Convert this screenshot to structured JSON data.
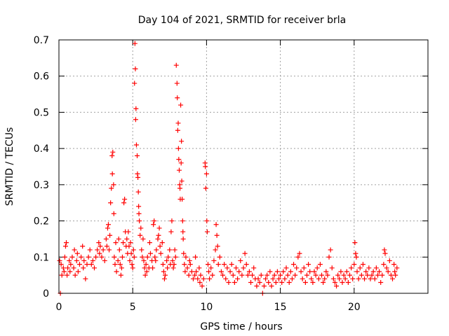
{
  "chart_data": {
    "type": "scatter",
    "title": "Day 104 of 2021, SRMTID for receiver brla",
    "xlabel": "GPS time / hours",
    "ylabel": "SRMTID / TECUs",
    "xlim": [
      0,
      25
    ],
    "ylim": [
      0,
      0.7
    ],
    "x_ticks": [
      0,
      5,
      10,
      15,
      20
    ],
    "y_ticks": [
      0,
      0.1,
      0.2,
      0.3,
      0.4,
      0.5,
      0.6,
      0.7
    ],
    "x_tick_labels": [
      "0",
      "5",
      "10",
      "15",
      "20"
    ],
    "y_tick_labels": [
      "0",
      "0.1",
      "0.2",
      "0.3",
      "0.4",
      "0.5",
      "0.6",
      "0.7"
    ],
    "grid": true,
    "marker": "+",
    "color": "#ff0000",
    "series": [
      {
        "name": "SRMTID",
        "points": [
          [
            0.05,
            0.09
          ],
          [
            0.1,
            0.0
          ],
          [
            0.15,
            0.08
          ],
          [
            0.2,
            0.05
          ],
          [
            0.3,
            0.07
          ],
          [
            0.35,
            0.06
          ],
          [
            0.4,
            0.1
          ],
          [
            0.45,
            0.13
          ],
          [
            0.5,
            0.14
          ],
          [
            0.55,
            0.05
          ],
          [
            0.6,
            0.07
          ],
          [
            0.7,
            0.09
          ],
          [
            0.75,
            0.06
          ],
          [
            0.8,
            0.08
          ],
          [
            0.9,
            0.1
          ],
          [
            1.0,
            0.07
          ],
          [
            1.05,
            0.12
          ],
          [
            1.1,
            0.05
          ],
          [
            1.2,
            0.09
          ],
          [
            1.25,
            0.11
          ],
          [
            1.3,
            0.06
          ],
          [
            1.4,
            0.08
          ],
          [
            1.5,
            0.1
          ],
          [
            1.6,
            0.13
          ],
          [
            1.65,
            0.07
          ],
          [
            1.7,
            0.09
          ],
          [
            1.8,
            0.04
          ],
          [
            1.9,
            0.08
          ],
          [
            2.0,
            0.1
          ],
          [
            2.1,
            0.12
          ],
          [
            2.2,
            0.08
          ],
          [
            2.3,
            0.09
          ],
          [
            2.4,
            0.07
          ],
          [
            2.5,
            0.1
          ],
          [
            2.6,
            0.12
          ],
          [
            2.7,
            0.14
          ],
          [
            2.75,
            0.11
          ],
          [
            2.8,
            0.13
          ],
          [
            2.9,
            0.1
          ],
          [
            3.0,
            0.12
          ],
          [
            3.1,
            0.09
          ],
          [
            3.2,
            0.15
          ],
          [
            3.25,
            0.13
          ],
          [
            3.3,
            0.18
          ],
          [
            3.35,
            0.19
          ],
          [
            3.4,
            0.12
          ],
          [
            3.45,
            0.16
          ],
          [
            3.5,
            0.25
          ],
          [
            3.55,
            0.29
          ],
          [
            3.6,
            0.38
          ],
          [
            3.62,
            0.33
          ],
          [
            3.65,
            0.39
          ],
          [
            3.7,
            0.3
          ],
          [
            3.72,
            0.22
          ],
          [
            3.75,
            0.1
          ],
          [
            3.8,
            0.08
          ],
          [
            3.85,
            0.14
          ],
          [
            3.9,
            0.06
          ],
          [
            4.0,
            0.09
          ],
          [
            4.05,
            0.15
          ],
          [
            4.1,
            0.12
          ],
          [
            4.15,
            0.08
          ],
          [
            4.2,
            0.05
          ],
          [
            4.25,
            0.07
          ],
          [
            4.3,
            0.1
          ],
          [
            4.35,
            0.14
          ],
          [
            4.4,
            0.25
          ],
          [
            4.45,
            0.26
          ],
          [
            4.5,
            0.17
          ],
          [
            4.55,
            0.13
          ],
          [
            4.6,
            0.15
          ],
          [
            4.65,
            0.11
          ],
          [
            4.7,
            0.17
          ],
          [
            4.75,
            0.13
          ],
          [
            4.8,
            0.09
          ],
          [
            4.85,
            0.14
          ],
          [
            4.9,
            0.11
          ],
          [
            4.95,
            0.08
          ],
          [
            5.0,
            0.07
          ],
          [
            5.05,
            0.12
          ],
          [
            5.1,
            0.1
          ],
          [
            5.12,
            0.58
          ],
          [
            5.15,
            0.69
          ],
          [
            5.18,
            0.62
          ],
          [
            5.2,
            0.48
          ],
          [
            5.22,
            0.51
          ],
          [
            5.25,
            0.41
          ],
          [
            5.3,
            0.38
          ],
          [
            5.32,
            0.33
          ],
          [
            5.35,
            0.32
          ],
          [
            5.38,
            0.28
          ],
          [
            5.4,
            0.24
          ],
          [
            5.42,
            0.22
          ],
          [
            5.45,
            0.2
          ],
          [
            5.5,
            0.16
          ],
          [
            5.55,
            0.18
          ],
          [
            5.6,
            0.12
          ],
          [
            5.65,
            0.1
          ],
          [
            5.7,
            0.15
          ],
          [
            5.75,
            0.09
          ],
          [
            5.8,
            0.07
          ],
          [
            5.85,
            0.05
          ],
          [
            5.9,
            0.08
          ],
          [
            5.95,
            0.06
          ],
          [
            6.0,
            0.1
          ],
          [
            6.1,
            0.07
          ],
          [
            6.15,
            0.14
          ],
          [
            6.2,
            0.11
          ],
          [
            6.3,
            0.09
          ],
          [
            6.35,
            0.07
          ],
          [
            6.4,
            0.19
          ],
          [
            6.45,
            0.2
          ],
          [
            6.5,
            0.1
          ],
          [
            6.55,
            0.09
          ],
          [
            6.6,
            0.12
          ],
          [
            6.7,
            0.15
          ],
          [
            6.75,
            0.16
          ],
          [
            6.8,
            0.18
          ],
          [
            6.85,
            0.13
          ],
          [
            6.9,
            0.11
          ],
          [
            7.0,
            0.14
          ],
          [
            7.05,
            0.08
          ],
          [
            7.1,
            0.06
          ],
          [
            7.15,
            0.04
          ],
          [
            7.2,
            0.05
          ],
          [
            7.3,
            0.09
          ],
          [
            7.35,
            0.07
          ],
          [
            7.4,
            0.1
          ],
          [
            7.5,
            0.12
          ],
          [
            7.55,
            0.08
          ],
          [
            7.6,
            0.17
          ],
          [
            7.65,
            0.2
          ],
          [
            7.7,
            0.09
          ],
          [
            7.75,
            0.07
          ],
          [
            7.8,
            0.08
          ],
          [
            7.85,
            0.12
          ],
          [
            7.9,
            0.1
          ],
          [
            7.95,
            0.63
          ],
          [
            8.0,
            0.58
          ],
          [
            8.02,
            0.54
          ],
          [
            8.05,
            0.45
          ],
          [
            8.08,
            0.47
          ],
          [
            8.1,
            0.4
          ],
          [
            8.12,
            0.37
          ],
          [
            8.15,
            0.34
          ],
          [
            8.18,
            0.3
          ],
          [
            8.2,
            0.29
          ],
          [
            8.22,
            0.26
          ],
          [
            8.25,
            0.52
          ],
          [
            8.28,
            0.36
          ],
          [
            8.3,
            0.42
          ],
          [
            8.32,
            0.31
          ],
          [
            8.35,
            0.26
          ],
          [
            8.38,
            0.2
          ],
          [
            8.4,
            0.17
          ],
          [
            8.42,
            0.15
          ],
          [
            8.45,
            0.11
          ],
          [
            8.5,
            0.08
          ],
          [
            8.55,
            0.06
          ],
          [
            8.6,
            0.1
          ],
          [
            8.7,
            0.07
          ],
          [
            8.8,
            0.05
          ],
          [
            8.85,
            0.09
          ],
          [
            8.9,
            0.08
          ],
          [
            9.0,
            0.06
          ],
          [
            9.1,
            0.04
          ],
          [
            9.2,
            0.05
          ],
          [
            9.25,
            0.1
          ],
          [
            9.3,
            0.06
          ],
          [
            9.4,
            0.04
          ],
          [
            9.5,
            0.07
          ],
          [
            9.55,
            0.03
          ],
          [
            9.6,
            0.05
          ],
          [
            9.7,
            0.02
          ],
          [
            9.8,
            0.04
          ],
          [
            9.9,
            0.36
          ],
          [
            9.92,
            0.35
          ],
          [
            9.95,
            0.29
          ],
          [
            10.0,
            0.33
          ],
          [
            10.02,
            0.2
          ],
          [
            10.05,
            0.17
          ],
          [
            10.1,
            0.08
          ],
          [
            10.15,
            0.06
          ],
          [
            10.2,
            0.04
          ],
          [
            10.3,
            0.07
          ],
          [
            10.4,
            0.05
          ],
          [
            10.5,
            0.09
          ],
          [
            10.6,
            0.12
          ],
          [
            10.65,
            0.19
          ],
          [
            10.7,
            0.16
          ],
          [
            10.75,
            0.13
          ],
          [
            10.8,
            0.08
          ],
          [
            10.9,
            0.1
          ],
          [
            11.0,
            0.06
          ],
          [
            11.1,
            0.05
          ],
          [
            11.2,
            0.08
          ],
          [
            11.3,
            0.04
          ],
          [
            11.4,
            0.07
          ],
          [
            11.5,
            0.03
          ],
          [
            11.6,
            0.06
          ],
          [
            11.7,
            0.08
          ],
          [
            11.8,
            0.05
          ],
          [
            11.9,
            0.03
          ],
          [
            12.0,
            0.07
          ],
          [
            12.1,
            0.04
          ],
          [
            12.2,
            0.06
          ],
          [
            12.3,
            0.09
          ],
          [
            12.4,
            0.05
          ],
          [
            12.5,
            0.07
          ],
          [
            12.6,
            0.11
          ],
          [
            12.7,
            0.08
          ],
          [
            12.8,
            0.05
          ],
          [
            12.9,
            0.06
          ],
          [
            13.0,
            0.03
          ],
          [
            13.1,
            0.05
          ],
          [
            13.2,
            0.07
          ],
          [
            13.3,
            0.04
          ],
          [
            13.4,
            0.02
          ],
          [
            13.5,
            0.04
          ],
          [
            13.6,
            0.03
          ],
          [
            13.7,
            0.05
          ],
          [
            13.8,
            0.0
          ],
          [
            13.9,
            0.02
          ],
          [
            14.0,
            0.04
          ],
          [
            14.1,
            0.05
          ],
          [
            14.2,
            0.03
          ],
          [
            14.3,
            0.06
          ],
          [
            14.4,
            0.02
          ],
          [
            14.5,
            0.04
          ],
          [
            14.6,
            0.05
          ],
          [
            14.7,
            0.03
          ],
          [
            14.8,
            0.06
          ],
          [
            14.9,
            0.04
          ],
          [
            15.0,
            0.05
          ],
          [
            15.1,
            0.03
          ],
          [
            15.2,
            0.06
          ],
          [
            15.3,
            0.04
          ],
          [
            15.4,
            0.07
          ],
          [
            15.5,
            0.05
          ],
          [
            15.6,
            0.03
          ],
          [
            15.7,
            0.06
          ],
          [
            15.8,
            0.04
          ],
          [
            15.9,
            0.08
          ],
          [
            16.0,
            0.05
          ],
          [
            16.1,
            0.07
          ],
          [
            16.2,
            0.1
          ],
          [
            16.3,
            0.11
          ],
          [
            16.4,
            0.06
          ],
          [
            16.5,
            0.04
          ],
          [
            16.6,
            0.07
          ],
          [
            16.7,
            0.03
          ],
          [
            16.8,
            0.05
          ],
          [
            16.9,
            0.08
          ],
          [
            17.0,
            0.06
          ],
          [
            17.1,
            0.04
          ],
          [
            17.2,
            0.03
          ],
          [
            17.3,
            0.06
          ],
          [
            17.4,
            0.05
          ],
          [
            17.5,
            0.07
          ],
          [
            17.6,
            0.04
          ],
          [
            17.7,
            0.08
          ],
          [
            17.8,
            0.05
          ],
          [
            17.9,
            0.03
          ],
          [
            18.0,
            0.04
          ],
          [
            18.1,
            0.06
          ],
          [
            18.2,
            0.05
          ],
          [
            18.3,
            0.1
          ],
          [
            18.4,
            0.12
          ],
          [
            18.5,
            0.07
          ],
          [
            18.6,
            0.04
          ],
          [
            18.7,
            0.03
          ],
          [
            18.8,
            0.02
          ],
          [
            18.9,
            0.05
          ],
          [
            19.0,
            0.04
          ],
          [
            19.1,
            0.06
          ],
          [
            19.2,
            0.03
          ],
          [
            19.3,
            0.05
          ],
          [
            19.4,
            0.04
          ],
          [
            19.5,
            0.06
          ],
          [
            19.6,
            0.03
          ],
          [
            19.7,
            0.05
          ],
          [
            19.8,
            0.07
          ],
          [
            19.9,
            0.04
          ],
          [
            20.0,
            0.08
          ],
          [
            20.05,
            0.14
          ],
          [
            20.1,
            0.11
          ],
          [
            20.15,
            0.1
          ],
          [
            20.2,
            0.06
          ],
          [
            20.3,
            0.04
          ],
          [
            20.4,
            0.07
          ],
          [
            20.5,
            0.05
          ],
          [
            20.6,
            0.08
          ],
          [
            20.7,
            0.04
          ],
          [
            20.8,
            0.06
          ],
          [
            20.9,
            0.05
          ],
          [
            21.0,
            0.07
          ],
          [
            21.1,
            0.04
          ],
          [
            21.2,
            0.05
          ],
          [
            21.3,
            0.06
          ],
          [
            21.4,
            0.04
          ],
          [
            21.5,
            0.07
          ],
          [
            21.6,
            0.05
          ],
          [
            21.7,
            0.06
          ],
          [
            21.8,
            0.03
          ],
          [
            21.9,
            0.05
          ],
          [
            22.0,
            0.08
          ],
          [
            22.05,
            0.12
          ],
          [
            22.1,
            0.11
          ],
          [
            22.2,
            0.07
          ],
          [
            22.3,
            0.06
          ],
          [
            22.4,
            0.09
          ],
          [
            22.5,
            0.05
          ],
          [
            22.6,
            0.04
          ],
          [
            22.7,
            0.08
          ],
          [
            22.75,
            0.06
          ],
          [
            22.8,
            0.05
          ],
          [
            22.9,
            0.07
          ]
        ]
      }
    ]
  }
}
